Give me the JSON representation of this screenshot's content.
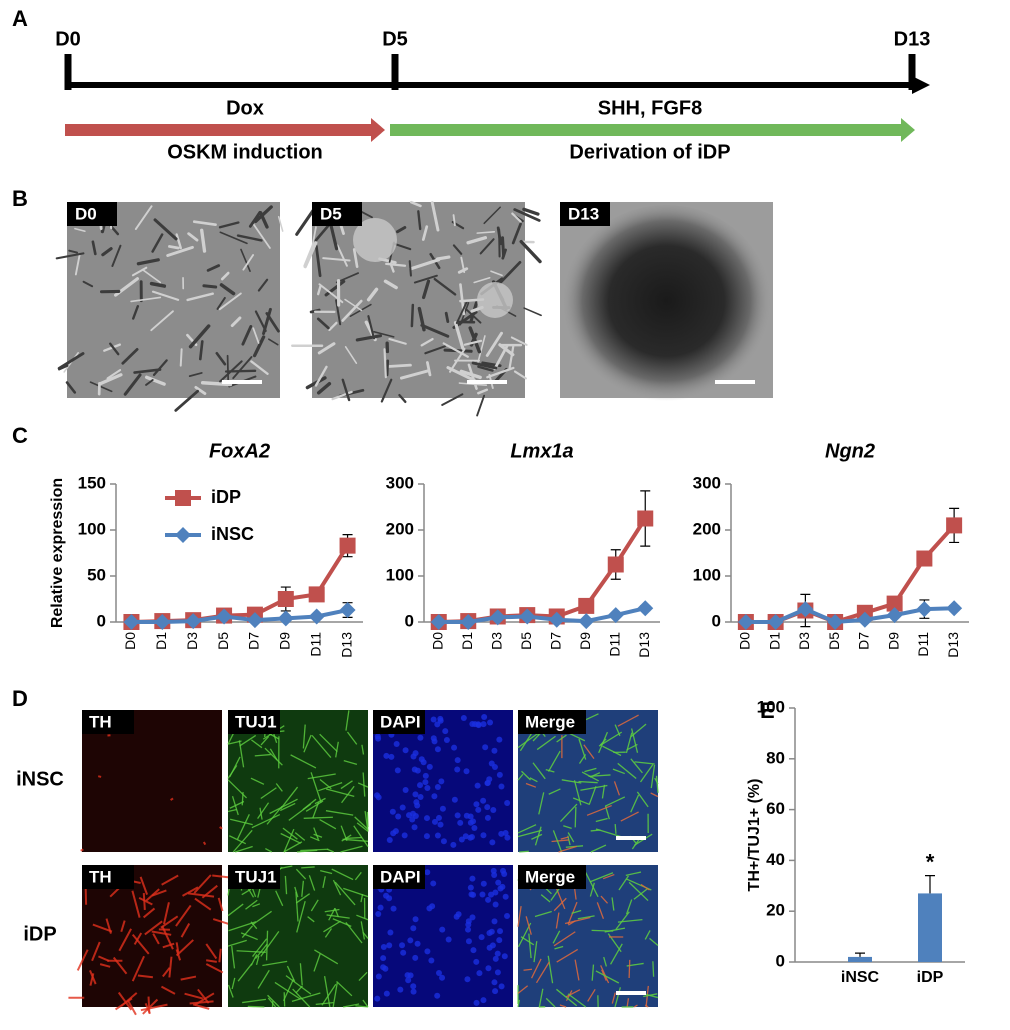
{
  "panel_labels": [
    "A",
    "B",
    "C",
    "D",
    "E"
  ],
  "timeline": {
    "days": [
      "D0",
      "D5",
      "D13"
    ],
    "phases": [
      {
        "treatment": "Dox",
        "description": "OSKM induction",
        "color": "#c0504d"
      },
      {
        "treatment": "SHH, FGF8",
        "description": "Derivation of iDP",
        "color": "#70b85a"
      }
    ]
  },
  "micrographs": [
    "D0",
    "D5",
    "D13"
  ],
  "chart_data": [
    {
      "type": "line",
      "title": "FoxA2",
      "y_label": "Relative expression",
      "categories": [
        "D0",
        "D1",
        "D3",
        "D5",
        "D7",
        "D9",
        "D11",
        "D13"
      ],
      "series": [
        {
          "name": "iDP",
          "color": "#c0504d",
          "marker": "square",
          "values": [
            0,
            1,
            2,
            7,
            8,
            25,
            30,
            83
          ],
          "errors": [
            0,
            0,
            1,
            2,
            2,
            13,
            4,
            12
          ]
        },
        {
          "name": "iNSC",
          "color": "#4f81bd",
          "marker": "diamond",
          "values": [
            0,
            0,
            1,
            6,
            2,
            4,
            6,
            13
          ],
          "errors": [
            0,
            0,
            0,
            1,
            1,
            1,
            2,
            8
          ]
        }
      ],
      "ylim": [
        0,
        150
      ],
      "yticks": [
        0,
        50,
        100,
        150
      ],
      "legend": "upper left"
    },
    {
      "type": "line",
      "title": "Lmx1a",
      "categories": [
        "D0",
        "D1",
        "D3",
        "D5",
        "D7",
        "D9",
        "D11",
        "D13"
      ],
      "series": [
        {
          "color": "#c0504d",
          "marker": "square",
          "values": [
            0,
            2,
            12,
            15,
            12,
            35,
            125,
            225
          ],
          "errors": [
            0,
            1,
            3,
            3,
            2,
            8,
            32,
            60
          ]
        },
        {
          "color": "#4f81bd",
          "marker": "diamond",
          "values": [
            0,
            0,
            10,
            12,
            5,
            2,
            15,
            30
          ],
          "errors": [
            0,
            0,
            2,
            2,
            1,
            1,
            3,
            5
          ]
        }
      ],
      "ylim": [
        0,
        300
      ],
      "yticks": [
        0,
        100,
        200,
        300
      ]
    },
    {
      "type": "line",
      "title": "Ngn2",
      "categories": [
        "D0",
        "D1",
        "D3",
        "D5",
        "D7",
        "D9",
        "D11",
        "D13"
      ],
      "series": [
        {
          "color": "#c0504d",
          "marker": "square",
          "values": [
            0,
            0,
            25,
            0,
            20,
            40,
            138,
            210
          ],
          "errors": [
            0,
            0,
            35,
            0,
            4,
            6,
            8,
            37
          ]
        },
        {
          "color": "#4f81bd",
          "marker": "diamond",
          "values": [
            0,
            0,
            28,
            0,
            5,
            15,
            28,
            30
          ],
          "errors": [
            0,
            0,
            5,
            0,
            1,
            3,
            20,
            5
          ]
        }
      ],
      "ylim": [
        0,
        300
      ],
      "yticks": [
        0,
        100,
        200,
        300
      ]
    },
    {
      "type": "bar",
      "y_label": "TH+/TUJ1+ (%)",
      "categories": [
        "iNSC",
        "iDP"
      ],
      "values": [
        2,
        27
      ],
      "errors": [
        1.5,
        7
      ],
      "value_annotations": [
        null,
        "*"
      ],
      "color": "#4f81bd",
      "ylim": [
        0,
        100
      ],
      "yticks": [
        0,
        20,
        40,
        60,
        80,
        100
      ]
    }
  ],
  "immunostaining": {
    "rows": [
      "iNSC",
      "iDP"
    ],
    "channels": [
      "TH",
      "TUJ1",
      "DAPI",
      "Merge"
    ]
  }
}
